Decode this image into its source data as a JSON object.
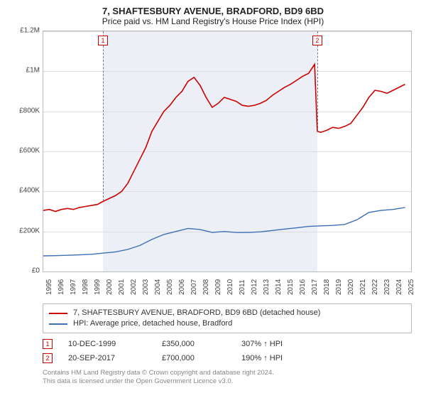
{
  "title": "7, SHAFTESBURY AVENUE, BRADFORD, BD9 6BD",
  "subtitle": "Price paid vs. HM Land Registry's House Price Index (HPI)",
  "chart": {
    "type": "line",
    "background_color": "#ffffff",
    "grid_color": "#dddddd",
    "border_color": "#bbbbbb",
    "highlight_color": "rgba(220,228,238,0.55)",
    "ylim": [
      0,
      1200000
    ],
    "ytick_step": 200000,
    "y_ticks": [
      "£0",
      "£200K",
      "£400K",
      "£600K",
      "£800K",
      "£1M",
      "£1.2M"
    ],
    "x_years": [
      1995,
      1996,
      1997,
      1998,
      1999,
      2000,
      2001,
      2002,
      2003,
      2004,
      2005,
      2006,
      2007,
      2008,
      2009,
      2010,
      2011,
      2012,
      2013,
      2014,
      2015,
      2016,
      2017,
      2018,
      2019,
      2020,
      2021,
      2022,
      2023,
      2024,
      2025
    ],
    "xlim": [
      1995,
      2025.5
    ],
    "label_fontsize": 10,
    "highlight_start": 1999.95,
    "highlight_end": 2017.72,
    "series": [
      {
        "name": "7, SHAFTESBURY AVENUE, BRADFORD, BD9 6BD (detached house)",
        "color": "#cc0000",
        "line_width": 1.6,
        "data": [
          [
            1995,
            305000
          ],
          [
            1995.5,
            310000
          ],
          [
            1996,
            300000
          ],
          [
            1996.5,
            310000
          ],
          [
            1997,
            315000
          ],
          [
            1997.5,
            310000
          ],
          [
            1998,
            320000
          ],
          [
            1998.5,
            325000
          ],
          [
            1999,
            330000
          ],
          [
            1999.5,
            335000
          ],
          [
            1999.95,
            350000
          ],
          [
            2000.3,
            360000
          ],
          [
            2001,
            380000
          ],
          [
            2001.5,
            400000
          ],
          [
            2002,
            440000
          ],
          [
            2002.5,
            500000
          ],
          [
            2003,
            560000
          ],
          [
            2003.5,
            620000
          ],
          [
            2004,
            700000
          ],
          [
            2004.5,
            750000
          ],
          [
            2005,
            800000
          ],
          [
            2005.5,
            830000
          ],
          [
            2006,
            870000
          ],
          [
            2006.5,
            900000
          ],
          [
            2007,
            950000
          ],
          [
            2007.5,
            970000
          ],
          [
            2008,
            930000
          ],
          [
            2008.5,
            870000
          ],
          [
            2009,
            820000
          ],
          [
            2009.5,
            840000
          ],
          [
            2010,
            870000
          ],
          [
            2010.5,
            860000
          ],
          [
            2011,
            850000
          ],
          [
            2011.5,
            830000
          ],
          [
            2012,
            825000
          ],
          [
            2012.5,
            830000
          ],
          [
            2013,
            840000
          ],
          [
            2013.5,
            855000
          ],
          [
            2014,
            880000
          ],
          [
            2014.5,
            900000
          ],
          [
            2015,
            920000
          ],
          [
            2015.5,
            935000
          ],
          [
            2016,
            955000
          ],
          [
            2016.5,
            975000
          ],
          [
            2017,
            990000
          ],
          [
            2017.5,
            1035000
          ],
          [
            2017.72,
            700000
          ],
          [
            2018,
            695000
          ],
          [
            2018.5,
            705000
          ],
          [
            2019,
            720000
          ],
          [
            2019.5,
            715000
          ],
          [
            2020,
            725000
          ],
          [
            2020.5,
            740000
          ],
          [
            2021,
            780000
          ],
          [
            2021.5,
            820000
          ],
          [
            2022,
            870000
          ],
          [
            2022.5,
            905000
          ],
          [
            2023,
            900000
          ],
          [
            2023.5,
            890000
          ],
          [
            2024,
            905000
          ],
          [
            2024.5,
            920000
          ],
          [
            2025,
            935000
          ]
        ]
      },
      {
        "name": "HPI: Average price, detached house, Bradford",
        "color": "#3b6fb6",
        "line_width": 1.4,
        "data": [
          [
            1995,
            78000
          ],
          [
            1996,
            79000
          ],
          [
            1997,
            81000
          ],
          [
            1998,
            83000
          ],
          [
            1999,
            86000
          ],
          [
            2000,
            92000
          ],
          [
            2001,
            98000
          ],
          [
            2002,
            110000
          ],
          [
            2003,
            130000
          ],
          [
            2004,
            160000
          ],
          [
            2005,
            185000
          ],
          [
            2006,
            200000
          ],
          [
            2007,
            215000
          ],
          [
            2008,
            210000
          ],
          [
            2009,
            195000
          ],
          [
            2010,
            200000
          ],
          [
            2011,
            195000
          ],
          [
            2012,
            195000
          ],
          [
            2013,
            198000
          ],
          [
            2014,
            205000
          ],
          [
            2015,
            212000
          ],
          [
            2016,
            218000
          ],
          [
            2017,
            225000
          ],
          [
            2018,
            228000
          ],
          [
            2019,
            230000
          ],
          [
            2020,
            235000
          ],
          [
            2021,
            258000
          ],
          [
            2022,
            295000
          ],
          [
            2023,
            305000
          ],
          [
            2024,
            310000
          ],
          [
            2025,
            320000
          ]
        ]
      }
    ],
    "markers": [
      {
        "label": "1",
        "x": 1999.95,
        "y": 350000,
        "box_top": true
      },
      {
        "label": "2",
        "x": 2017.72,
        "y": 700000,
        "box_top": true
      }
    ]
  },
  "legend": {
    "items": [
      {
        "label": "7, SHAFTESBURY AVENUE, BRADFORD, BD9 6BD (detached house)",
        "color": "#cc0000"
      },
      {
        "label": "HPI: Average price, detached house, Bradford",
        "color": "#3b6fb6"
      }
    ]
  },
  "transactions": [
    {
      "marker": "1",
      "date": "10-DEC-1999",
      "price": "£350,000",
      "delta": "307% ↑ HPI"
    },
    {
      "marker": "2",
      "date": "20-SEP-2017",
      "price": "£700,000",
      "delta": "190% ↑ HPI"
    }
  ],
  "attribution": {
    "line1": "Contains HM Land Registry data © Crown copyright and database right 2024.",
    "line2": "This data is licensed under the Open Government Licence v3.0."
  }
}
